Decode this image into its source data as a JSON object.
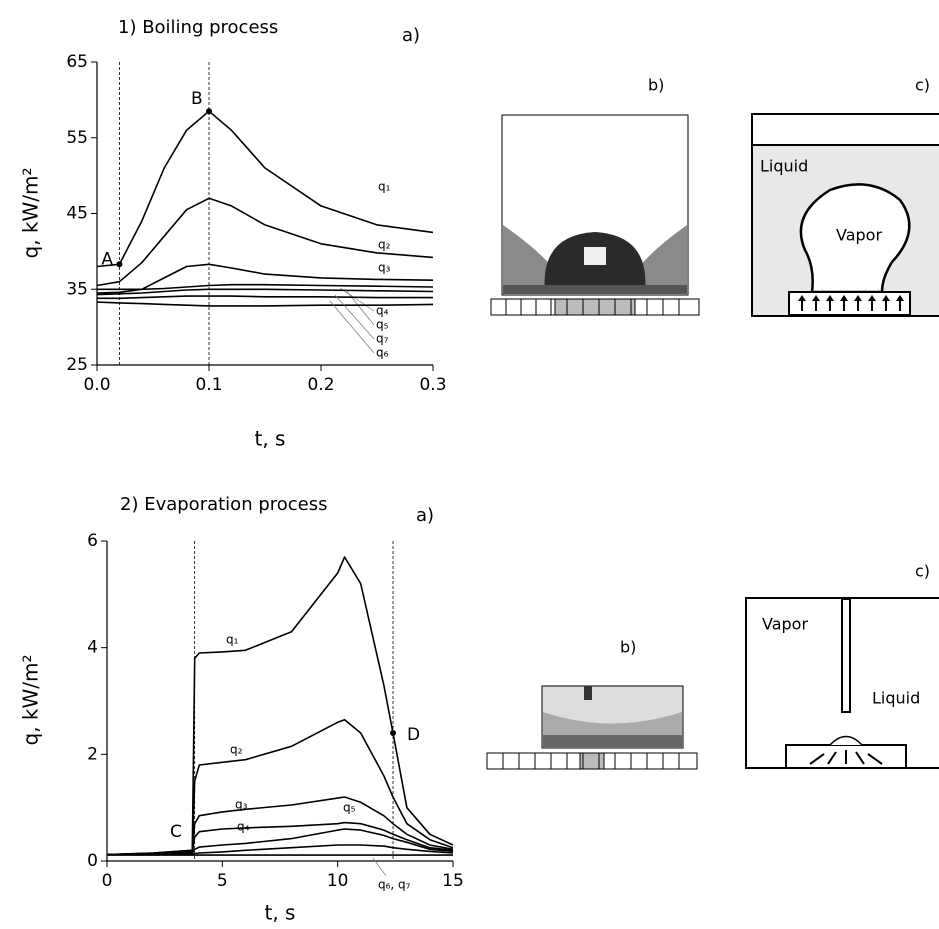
{
  "chart_data": [
    {
      "type": "line",
      "title": "1) Boiling process",
      "panel": "a)",
      "xlabel": "t, s",
      "ylabel": "q, kW/m²",
      "xlim": [
        0,
        0.3
      ],
      "ylim": [
        25,
        65
      ],
      "xticks": [
        {
          "value": 0,
          "label": "0.0"
        },
        0.1,
        0.2,
        0.3
      ],
      "yticks": [
        25,
        35,
        45,
        55,
        65
      ],
      "x": [
        0,
        0.02,
        0.04,
        0.06,
        0.08,
        0.1,
        0.12,
        0.15,
        0.2,
        0.25,
        0.3
      ],
      "series": [
        {
          "name": "q₁",
          "color": "#000",
          "values": [
            38,
            38.3,
            44,
            51,
            56,
            58.5,
            56,
            51,
            46,
            43.5,
            42.5
          ]
        },
        {
          "name": "q₂",
          "color": "#000",
          "values": [
            35.5,
            36,
            38.5,
            42,
            45.5,
            47,
            46,
            43.5,
            41,
            39.8,
            39.2
          ]
        },
        {
          "name": "q₃",
          "color": "#000",
          "values": [
            34.5,
            34.6,
            35,
            36.5,
            38,
            38.3,
            37.8,
            37,
            36.5,
            36.3,
            36.2
          ]
        },
        {
          "name": "q₄",
          "color": "#000",
          "values": [
            35,
            35,
            35,
            35.1,
            35.3,
            35.5,
            35.6,
            35.6,
            35.5,
            35.4,
            35.3
          ]
        },
        {
          "name": "q₅",
          "color": "#000",
          "values": [
            34.3,
            34.4,
            34.5,
            34.7,
            34.9,
            35,
            35,
            35,
            34.9,
            34.8,
            34.7
          ]
        },
        {
          "name": "q₆",
          "color": "#000",
          "values": [
            33.3,
            33.2,
            33.1,
            33,
            32.9,
            32.8,
            32.8,
            32.8,
            32.9,
            32.9,
            33
          ]
        },
        {
          "name": "q₇",
          "color": "#000",
          "values": [
            33.8,
            33.8,
            33.9,
            34,
            34.1,
            34.1,
            34.1,
            34,
            34,
            33.9,
            33.9
          ]
        }
      ],
      "vlines": [
        0.02,
        0.1
      ],
      "points": [
        {
          "label": "A",
          "x": 0.02,
          "y": 38.3
        },
        {
          "label": "B",
          "x": 0.1,
          "y": 58.5
        }
      ]
    },
    {
      "type": "line",
      "title": "2) Evaporation process",
      "panel": "a)",
      "xlabel": "t, s",
      "ylabel": "q, kW/m²",
      "xlim": [
        0,
        15
      ],
      "ylim": [
        0,
        6
      ],
      "xticks": [
        0,
        5,
        10,
        15
      ],
      "yticks": [
        0,
        2,
        4,
        6
      ],
      "x": [
        0,
        2,
        3.7,
        3.8,
        4,
        5,
        6,
        8,
        10,
        10.3,
        11,
        12,
        12.4,
        13,
        14,
        15
      ],
      "series": [
        {
          "name": "q₁",
          "color": "#000",
          "values": [
            0.12,
            0.15,
            0.2,
            3.8,
            3.9,
            3.92,
            3.95,
            4.3,
            5.4,
            5.7,
            5.2,
            3.3,
            2.4,
            1.0,
            0.5,
            0.3
          ]
        },
        {
          "name": "q₂",
          "color": "#000",
          "values": [
            0.12,
            0.15,
            0.2,
            1.5,
            1.8,
            1.85,
            1.9,
            2.15,
            2.6,
            2.65,
            2.4,
            1.6,
            1.2,
            0.7,
            0.4,
            0.25
          ]
        },
        {
          "name": "q₃",
          "color": "#000",
          "values": [
            0.12,
            0.14,
            0.18,
            0.7,
            0.85,
            0.92,
            0.97,
            1.05,
            1.18,
            1.2,
            1.1,
            0.85,
            0.7,
            0.5,
            0.3,
            0.22
          ]
        },
        {
          "name": "q₄",
          "color": "#000",
          "values": [
            0.12,
            0.13,
            0.16,
            0.45,
            0.55,
            0.6,
            0.62,
            0.65,
            0.7,
            0.72,
            0.7,
            0.58,
            0.5,
            0.4,
            0.25,
            0.2
          ]
        },
        {
          "name": "q₅",
          "color": "#000",
          "values": [
            0.12,
            0.13,
            0.15,
            0.22,
            0.26,
            0.3,
            0.33,
            0.42,
            0.58,
            0.6,
            0.58,
            0.48,
            0.42,
            0.35,
            0.22,
            0.18
          ]
        },
        {
          "color": "#000",
          "values": [
            0.12,
            0.12,
            0.13,
            0.14,
            0.15,
            0.17,
            0.2,
            0.25,
            0.3,
            0.3,
            0.3,
            0.28,
            0.25,
            0.22,
            0.18,
            0.15
          ]
        },
        {
          "color": "#000",
          "values": [
            0.11,
            0.11,
            0.11,
            0.11,
            0.11,
            0.11,
            0.11,
            0.11,
            0.11,
            0.11,
            0.11,
            0.11,
            0.11,
            0.11,
            0.11,
            0.11
          ]
        }
      ],
      "vlines": [
        3.8,
        12.4
      ],
      "points": [
        {
          "label": "D",
          "x": 12.4,
          "y": 2.4
        }
      ],
      "annotations": [
        {
          "text": "C"
        },
        {
          "text": "q₆, q₇"
        }
      ]
    }
  ],
  "figure": {
    "boiling": {
      "b": "b)",
      "c": "c)",
      "liquid": "Liquid",
      "vapor": "Vapor"
    },
    "evaporation": {
      "b": "b)",
      "c": "c)",
      "vapor": "Vapor",
      "liquid": "Liquid"
    }
  }
}
